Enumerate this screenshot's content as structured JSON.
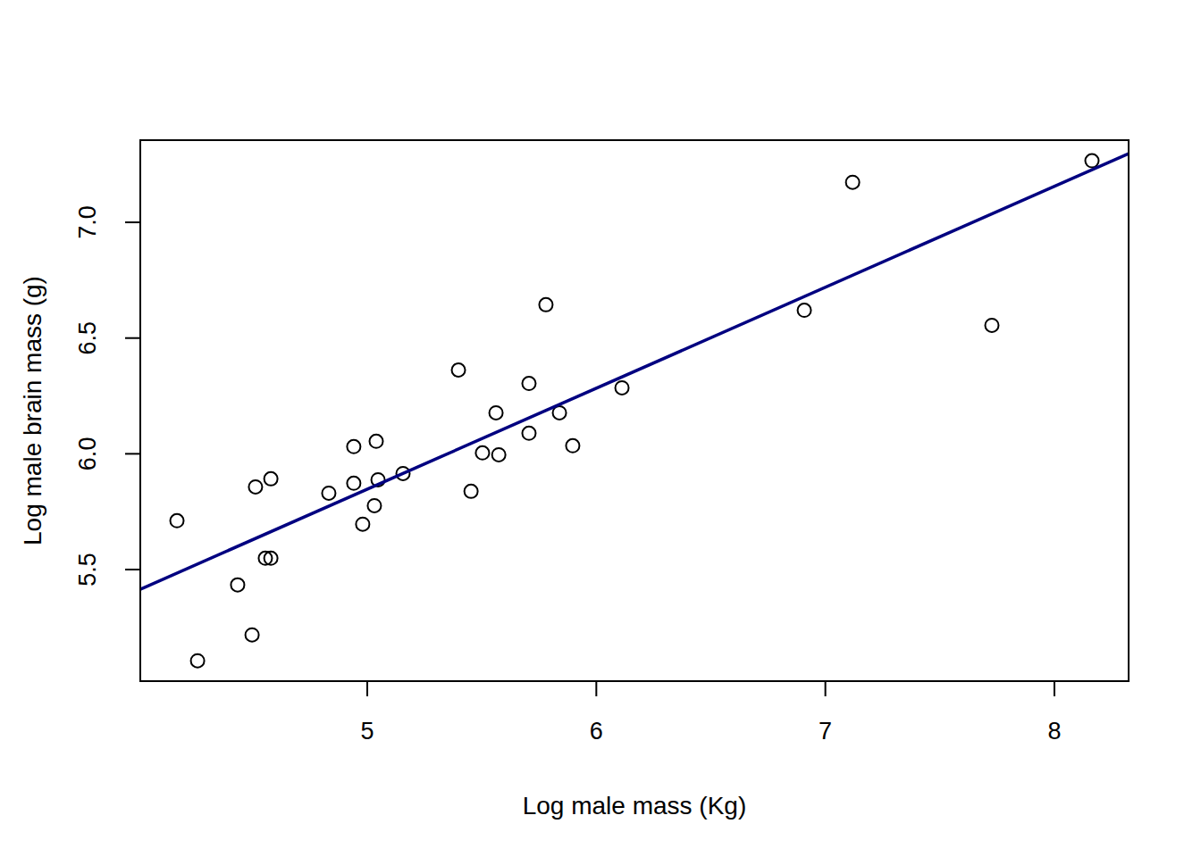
{
  "chart_data": {
    "type": "scatter",
    "x_label": "Log male mass (Kg)",
    "y_label": "Log male brain mass (g)",
    "xlim": [
      4.009,
      8.324
    ],
    "ylim": [
      5.018,
      7.355
    ],
    "xticks": [
      5,
      6,
      7,
      8
    ],
    "yticks": [
      5.5,
      {
        "value": 6,
        "label": "6.0"
      },
      6.5,
      {
        "value": 7,
        "label": "7.0"
      }
    ],
    "grid": false,
    "series": [
      {
        "type": "scatter",
        "color": "#000000",
        "marker": "circle",
        "x": [
          4.169,
          4.259,
          4.434,
          4.497,
          4.512,
          4.555,
          4.579,
          4.579,
          4.832,
          4.941,
          4.941,
          4.98,
          5.031,
          5.039,
          5.047,
          5.156,
          5.398,
          5.453,
          5.503,
          5.562,
          5.574,
          5.706,
          5.706,
          5.78,
          5.839,
          5.897,
          6.112,
          6.908,
          7.119,
          7.727,
          8.164
        ],
        "values": [
          5.711,
          5.106,
          5.434,
          5.218,
          5.857,
          5.549,
          5.549,
          5.892,
          5.83,
          5.873,
          6.031,
          5.696,
          5.776,
          6.054,
          5.888,
          5.915,
          6.362,
          5.838,
          6.004,
          6.177,
          5.996,
          6.304,
          6.089,
          6.644,
          6.177,
          6.035,
          6.285,
          6.62,
          7.173,
          6.555,
          7.266
        ]
      },
      {
        "type": "line",
        "color": "#000080",
        "line_style": "solid",
        "x": [
          4.009,
          8.324
        ],
        "values": [
          5.415,
          7.297
        ]
      }
    ]
  }
}
